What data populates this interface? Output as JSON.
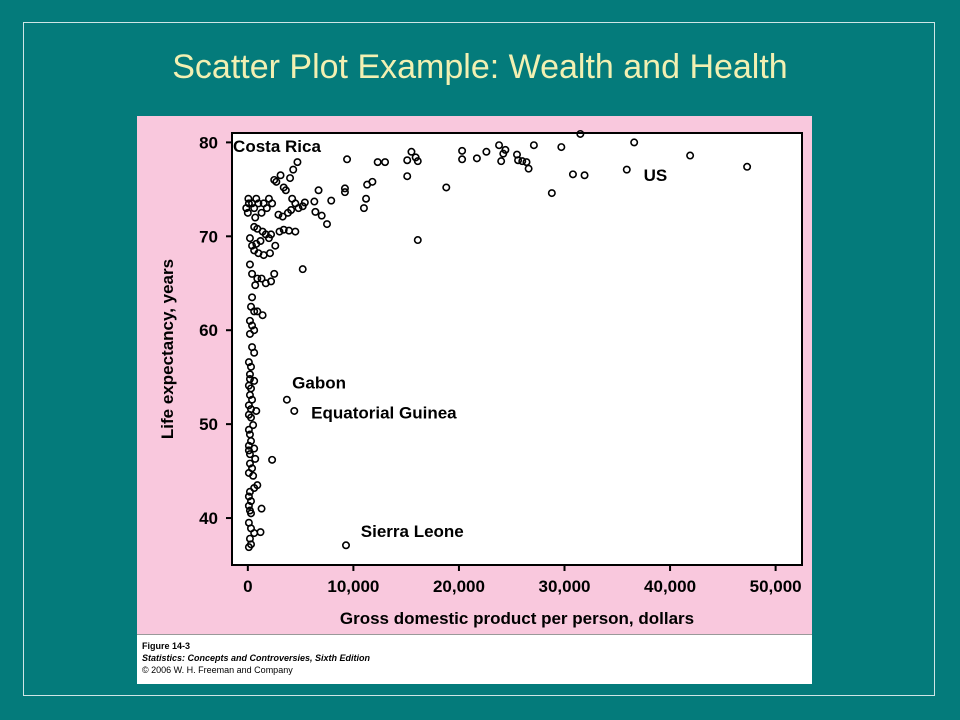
{
  "slide": {
    "title": "Scatter Plot Example: Wealth and Health"
  },
  "caption": {
    "figure": "Figure 14-3",
    "book": "Statistics: Concepts and Controversies, Sixth Edition",
    "copyright": "© 2006 W. H. Freeman and Company"
  },
  "colors": {
    "background": "#047b7b",
    "title": "#f2f0b2",
    "panel": "#f9c8dd",
    "plot_area": "#ffffff",
    "points": "#000000"
  },
  "chart_data": {
    "type": "scatter",
    "title": "",
    "xlabel": "Gross domestic product per person, dollars",
    "ylabel": "Life expectancy, years",
    "xlim": [
      -1500,
      52500
    ],
    "ylim": [
      35,
      81
    ],
    "xticks": [
      0,
      10000,
      20000,
      30000,
      40000,
      50000
    ],
    "xtick_labels": [
      "0",
      "10,000",
      "20,000",
      "30,000",
      "40,000",
      "50,000"
    ],
    "yticks": [
      40,
      50,
      60,
      70,
      80
    ],
    "ytick_labels": [
      "40",
      "50",
      "60",
      "70",
      "80"
    ],
    "grid": false,
    "annotations": [
      {
        "text": "Costa Rica",
        "x": 4700,
        "y": 77.9
      },
      {
        "text": "US",
        "x": 47300,
        "y": 77.4
      },
      {
        "text": "Gabon",
        "x": 3700,
        "y": 52.6
      },
      {
        "text": "Equatorial Guinea",
        "x": 4400,
        "y": 51.4
      },
      {
        "text": "Sierra Leone",
        "x": 9300,
        "y": 37.1
      }
    ],
    "annotation_label_positions": [
      {
        "text": "Costa Rica",
        "lx": -1400,
        "ly": 79
      },
      {
        "text": "US",
        "lx": 37500,
        "ly": 75.9
      },
      {
        "text": "Gabon",
        "lx": 4200,
        "ly": 53.8
      },
      {
        "text": "Equatorial Guinea",
        "lx": 6000,
        "ly": 50.6
      },
      {
        "text": "Sierra Leone",
        "lx": 10700,
        "ly": 38.0
      }
    ],
    "series": [
      {
        "points": [
          [
            -150,
            73
          ],
          [
            50,
            74
          ],
          [
            100,
            73.5
          ],
          [
            0,
            72.5
          ],
          [
            400,
            73.5
          ],
          [
            800,
            74
          ],
          [
            1000,
            73.5
          ],
          [
            1300,
            72.5
          ],
          [
            600,
            73
          ],
          [
            700,
            72
          ],
          [
            1500,
            73.5
          ],
          [
            1800,
            73
          ],
          [
            2000,
            74
          ],
          [
            2300,
            73.5
          ],
          [
            2500,
            76
          ],
          [
            3100,
            76.5
          ],
          [
            2700,
            75.8
          ],
          [
            3600,
            74.9
          ],
          [
            4300,
            77.1
          ],
          [
            4000,
            76.2
          ],
          [
            3400,
            75.2
          ],
          [
            4200,
            74
          ],
          [
            4500,
            73.5
          ],
          [
            4800,
            73
          ],
          [
            5400,
            73.6
          ],
          [
            5200,
            73.2
          ],
          [
            4100,
            72.8
          ],
          [
            3800,
            72.5
          ],
          [
            2900,
            72.3
          ],
          [
            3300,
            72.1
          ],
          [
            600,
            71
          ],
          [
            900,
            70.8
          ],
          [
            1400,
            70.5
          ],
          [
            1700,
            70.2
          ],
          [
            2000,
            69.8
          ],
          [
            1200,
            69.5
          ],
          [
            800,
            69.2
          ],
          [
            200,
            69.8
          ],
          [
            400,
            69
          ],
          [
            600,
            68.5
          ],
          [
            1000,
            68.2
          ],
          [
            1500,
            68
          ],
          [
            2100,
            68.2
          ],
          [
            2600,
            69
          ],
          [
            2200,
            70.2
          ],
          [
            3000,
            70.5
          ],
          [
            3400,
            70.7
          ],
          [
            3900,
            70.6
          ],
          [
            4500,
            70.5
          ],
          [
            5200,
            66.5
          ],
          [
            6300,
            73.7
          ],
          [
            6700,
            74.9
          ],
          [
            6400,
            72.6
          ],
          [
            7000,
            72.2
          ],
          [
            7500,
            71.3
          ],
          [
            7900,
            73.8
          ],
          [
            9200,
            74.7
          ],
          [
            9200,
            75.1
          ],
          [
            9400,
            78.2
          ],
          [
            11200,
            74
          ],
          [
            11000,
            73
          ],
          [
            11300,
            75.5
          ],
          [
            11800,
            75.8
          ],
          [
            12300,
            77.9
          ],
          [
            13000,
            77.9
          ],
          [
            15100,
            76.4
          ],
          [
            15100,
            78.1
          ],
          [
            15500,
            79
          ],
          [
            15900,
            78.4
          ],
          [
            16100,
            78
          ],
          [
            16100,
            69.6
          ],
          [
            18800,
            75.2
          ],
          [
            20300,
            78.2
          ],
          [
            20300,
            79.1
          ],
          [
            21700,
            78.3
          ],
          [
            22600,
            79
          ],
          [
            23800,
            79.7
          ],
          [
            24000,
            78
          ],
          [
            24200,
            78.8
          ],
          [
            24400,
            79.2
          ],
          [
            25500,
            78.7
          ],
          [
            25600,
            78.1
          ],
          [
            26000,
            78
          ],
          [
            26400,
            77.9
          ],
          [
            26600,
            77.2
          ],
          [
            27100,
            79.7
          ],
          [
            28800,
            74.6
          ],
          [
            29700,
            79.5
          ],
          [
            30800,
            76.6
          ],
          [
            31500,
            80.9
          ],
          [
            31900,
            76.5
          ],
          [
            35900,
            77.1
          ],
          [
            36600,
            80
          ],
          [
            41900,
            78.6
          ],
          [
            47300,
            77.4
          ],
          [
            200,
            67
          ],
          [
            400,
            66
          ],
          [
            900,
            65.5
          ],
          [
            1300,
            65.5
          ],
          [
            1700,
            65
          ],
          [
            2200,
            65.2
          ],
          [
            2500,
            66
          ],
          [
            700,
            64.8
          ],
          [
            400,
            63.5
          ],
          [
            300,
            62.5
          ],
          [
            600,
            62
          ],
          [
            900,
            62
          ],
          [
            1400,
            61.6
          ],
          [
            200,
            61
          ],
          [
            400,
            60.5
          ],
          [
            600,
            60
          ],
          [
            200,
            59.6
          ],
          [
            400,
            58.2
          ],
          [
            600,
            57.6
          ],
          [
            100,
            56.6
          ],
          [
            300,
            56.1
          ],
          [
            200,
            55.3
          ],
          [
            200,
            54.8
          ],
          [
            600,
            54.6
          ],
          [
            100,
            54.1
          ],
          [
            300,
            53.8
          ],
          [
            200,
            53.1
          ],
          [
            400,
            52.6
          ],
          [
            100,
            52
          ],
          [
            300,
            51.6
          ],
          [
            800,
            51.4
          ],
          [
            100,
            51
          ],
          [
            300,
            50.7
          ],
          [
            500,
            49.9
          ],
          [
            100,
            49.4
          ],
          [
            200,
            48.9
          ],
          [
            300,
            48.2
          ],
          [
            100,
            47.7
          ],
          [
            600,
            47.4
          ],
          [
            100,
            47.2
          ],
          [
            200,
            46.8
          ],
          [
            700,
            46.3
          ],
          [
            2300,
            46.2
          ],
          [
            200,
            45.8
          ],
          [
            400,
            45.3
          ],
          [
            100,
            44.8
          ],
          [
            500,
            44.5
          ],
          [
            900,
            43.5
          ],
          [
            600,
            43.2
          ],
          [
            200,
            42.8
          ],
          [
            100,
            42.3
          ],
          [
            300,
            41.8
          ],
          [
            100,
            41.3
          ],
          [
            200,
            40.8
          ],
          [
            1300,
            41
          ],
          [
            300,
            40.5
          ],
          [
            100,
            39.5
          ],
          [
            300,
            38.9
          ],
          [
            1200,
            38.5
          ],
          [
            600,
            38.4
          ],
          [
            200,
            37.8
          ],
          [
            300,
            37.2
          ],
          [
            100,
            36.9
          ],
          [
            3700,
            52.6
          ],
          [
            4400,
            51.4
          ],
          [
            9300,
            37.1
          ],
          [
            4700,
            77.9
          ]
        ]
      }
    ]
  }
}
